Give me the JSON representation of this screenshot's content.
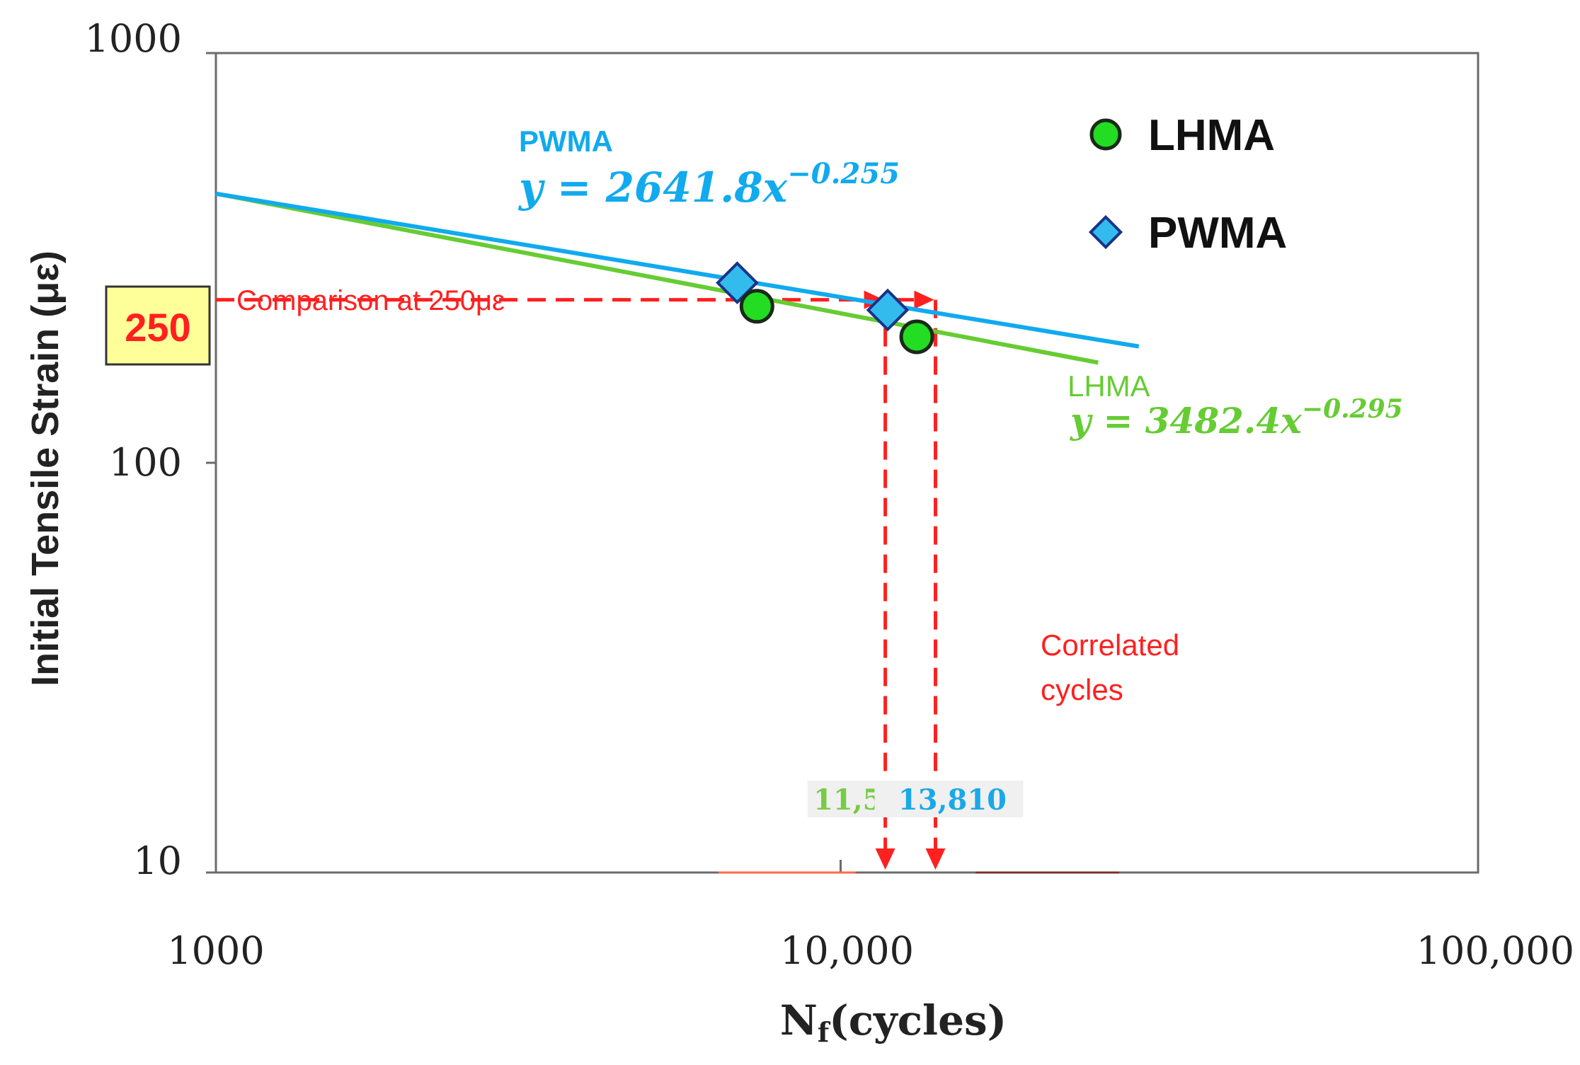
{
  "chart_data": {
    "type": "scatter",
    "title": "",
    "xlabel": "N",
    "xlabel_sub": "f",
    "xlabel_suffix": "(cycles)",
    "ylabel": "Initial Tensile Strain (με)",
    "x_scale": "log",
    "y_scale": "log",
    "xlim": [
      1000,
      100000
    ],
    "ylim": [
      10,
      1000
    ],
    "x_ticks": [
      1000,
      10000,
      100000
    ],
    "x_tick_labels": [
      "1000",
      "10,000",
      "100,000"
    ],
    "y_ticks": [
      10,
      100,
      1000
    ],
    "y_tick_labels": [
      "10",
      "100",
      "1000"
    ],
    "grid": false,
    "legend_position": "top-right",
    "series": [
      {
        "name": "LHMA",
        "marker": "circle",
        "color": "#22dd22",
        "points": [
          [
            7200,
            241
          ],
          [
            12900,
            203
          ]
        ],
        "fit": {
          "label": "LHMA",
          "equation": "y = 3482.4x",
          "exponent": "−0.295",
          "a": 3482.4,
          "b": -0.295,
          "x_range": [
            1000,
            25000
          ],
          "color": "#66cc33"
        }
      },
      {
        "name": "PWMA",
        "marker": "diamond",
        "color": "#33bbee",
        "points": [
          [
            6700,
            275
          ],
          [
            11600,
            236
          ]
        ],
        "fit": {
          "label": "PWMA",
          "equation": "y = 2641.8x",
          "exponent": "−0.255",
          "a": 2641.8,
          "b": -0.255,
          "x_range": [
            1000,
            29000
          ],
          "color": "#11aaee"
        }
      }
    ],
    "annotations": {
      "reference_value": "250",
      "reference_y": 250,
      "comparison_label": "Comparison at 250με",
      "correlated_label_line1": "Correlated",
      "correlated_label_line2": "cycles",
      "cycles_lhma": "11,500",
      "cycles_lhma_value": 11500,
      "cycles_pwma": "13,810",
      "cycles_pwma_value": 13810,
      "annotation_color": "#ff2020"
    }
  }
}
